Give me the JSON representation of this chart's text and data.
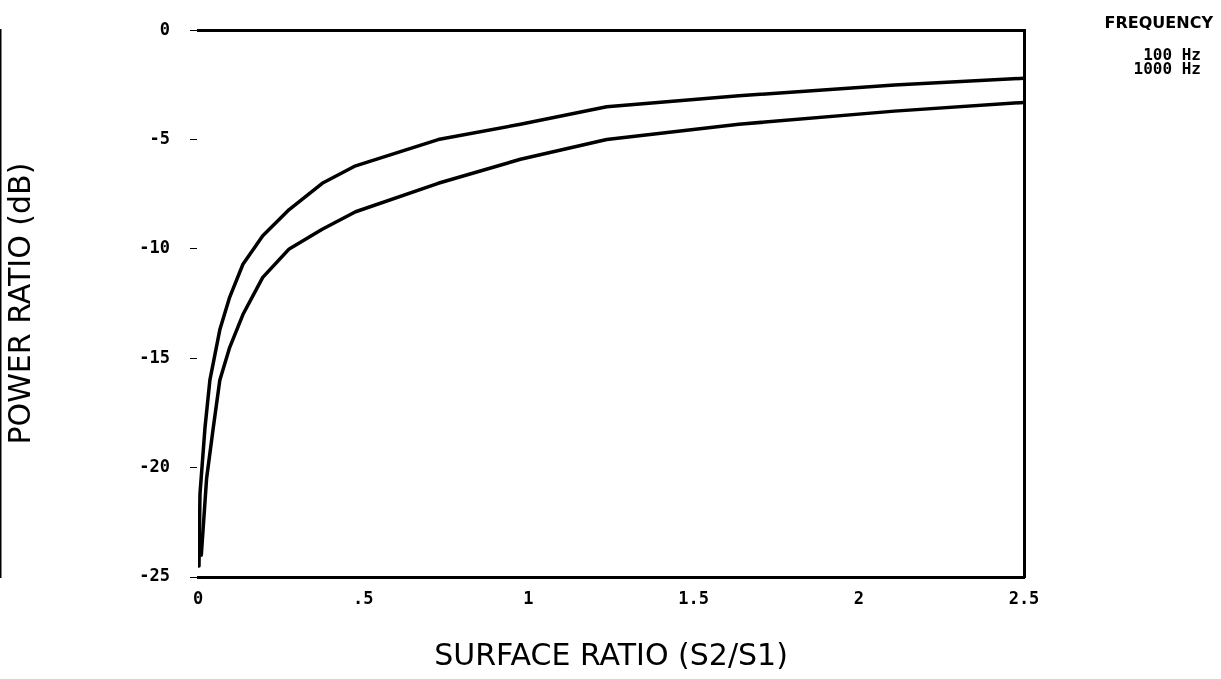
{
  "chart_data": {
    "type": "line",
    "xlabel": "SURFACE RATIO (S2/S1)",
    "ylabel": "POWER RATIO (dB)",
    "legend_title": "FREQUENCY",
    "legend": "top right",
    "marker": "none",
    "line_style": "solid",
    "grid": false,
    "xlim": [
      0,
      2.5
    ],
    "xticks": [
      0,
      {
        "value": 0.5,
        "label": ".5"
      },
      1,
      1.5,
      2,
      2.5
    ],
    "ylim": [
      -25,
      0
    ],
    "yticks": [
      0,
      -5,
      -10,
      -15,
      -20,
      -25
    ],
    "series": [
      {
        "name": "100 Hz",
        "color": "#000000",
        "x": [
          0.003,
          0.006,
          0.021,
          0.036,
          0.066,
          0.096,
          0.136,
          0.196,
          0.276,
          0.376,
          0.477,
          0.727,
          0.976,
          1.237,
          1.637,
          2.108,
          2.5
        ],
        "values": [
          -24.5,
          -21.2,
          -18.2,
          -16.0,
          -13.7,
          -12.2,
          -10.7,
          -9.4,
          -8.2,
          -7.0,
          -6.2,
          -5.0,
          -4.3,
          -3.5,
          -3.0,
          -2.5,
          -2.2
        ]
      },
      {
        "name": "1000 Hz",
        "color": "#000000",
        "x": [
          0.01,
          0.026,
          0.046,
          0.066,
          0.096,
          0.136,
          0.196,
          0.276,
          0.376,
          0.477,
          0.727,
          0.976,
          1.237,
          1.637,
          2.108,
          2.5
        ],
        "values": [
          -24.0,
          -20.5,
          -18.2,
          -16.0,
          -14.5,
          -13.0,
          -11.3,
          -10.0,
          -9.1,
          -8.3,
          -7.0,
          -5.9,
          -5.0,
          -4.3,
          -3.7,
          -3.3
        ]
      }
    ]
  }
}
